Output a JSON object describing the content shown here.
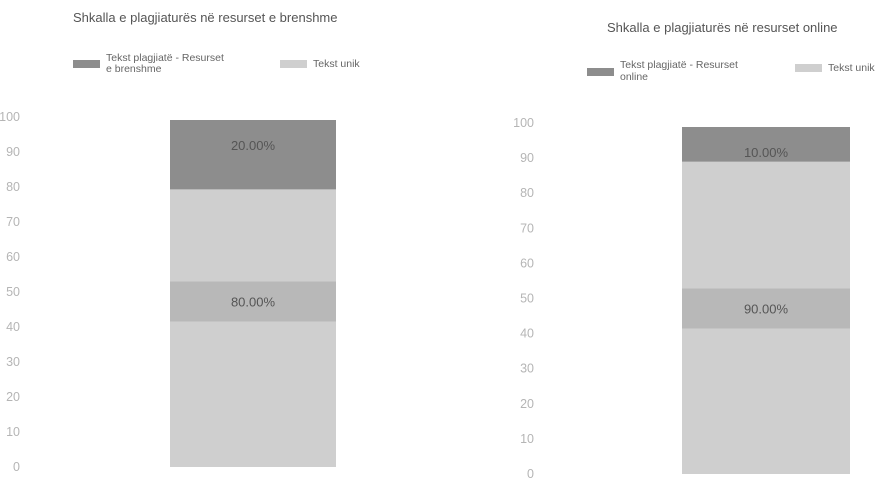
{
  "colors": {
    "plagiarized": "#8d8d8d",
    "unique": "#cfcfcf",
    "label_box": "#b8b8b8",
    "tick_text": "#b5b5b5",
    "title_text": "#555555",
    "bar_text": "#555555"
  },
  "chart_data": [
    {
      "type": "bar",
      "stacked": true,
      "title": "Shkalla e plagjiaturës në resurset e brenshme",
      "categories": [
        ""
      ],
      "series": [
        {
          "name": "Tekst plagjiatë - Resurset e brenshme",
          "name_lines": [
            "Tekst plagjiatë - Resurset",
            "e brenshme"
          ],
          "values": [
            20
          ],
          "label": "20.00%",
          "color": "#8d8d8d"
        },
        {
          "name": "Tekst unik",
          "name_lines": [
            "Tekst unik"
          ],
          "values": [
            80
          ],
          "label": "80.00%",
          "color": "#cfcfcf"
        }
      ],
      "ylim": [
        0,
        100
      ],
      "yticks": [
        "0",
        "10",
        "20",
        "30",
        "40",
        "50",
        "60",
        "70",
        "80",
        "90",
        "100"
      ],
      "legend_position": "top",
      "grid": false
    },
    {
      "type": "bar",
      "stacked": true,
      "title": "Shkalla e plagjiaturës në resurset online",
      "categories": [
        ""
      ],
      "series": [
        {
          "name": "Tekst plagjiatë - Resurset online",
          "name_lines": [
            "Tekst plagjiatë - Resurset",
            "online"
          ],
          "values": [
            10
          ],
          "label": "10.00%",
          "color": "#8d8d8d"
        },
        {
          "name": "Tekst unik",
          "name_lines": [
            "Tekst unik"
          ],
          "values": [
            90
          ],
          "label": "90.00%",
          "color": "#cfcfcf"
        }
      ],
      "ylim": [
        0,
        100
      ],
      "yticks": [
        "0",
        "10",
        "20",
        "30",
        "40",
        "50",
        "60",
        "70",
        "80",
        "90",
        "100"
      ],
      "legend_position": "top",
      "grid": false
    }
  ]
}
